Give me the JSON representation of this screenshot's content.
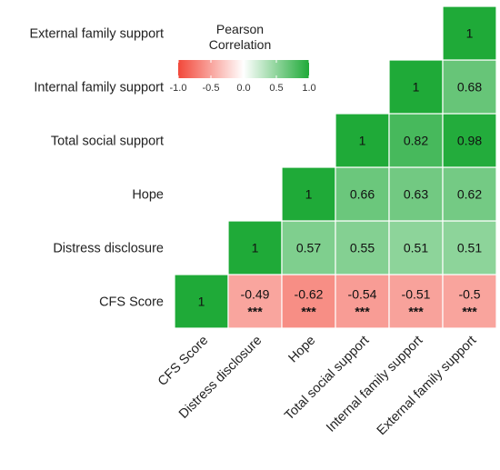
{
  "chart_data": {
    "type": "heatmap",
    "subtype": "lower-triangular correlation matrix",
    "variables": [
      "CFS Score",
      "Distress disclosure",
      "Hope",
      "Total social support",
      "Internal family support",
      "External family support"
    ],
    "cells": [
      {
        "row": "CFS Score",
        "col": "CFS Score",
        "value": 1,
        "label": "1",
        "sig": ""
      },
      {
        "row": "CFS Score",
        "col": "Distress disclosure",
        "value": -0.49,
        "label": "-0.49",
        "sig": "***"
      },
      {
        "row": "CFS Score",
        "col": "Hope",
        "value": -0.62,
        "label": "-0.62",
        "sig": "***"
      },
      {
        "row": "CFS Score",
        "col": "Total social support",
        "value": -0.54,
        "label": "-0.54",
        "sig": "***"
      },
      {
        "row": "CFS Score",
        "col": "Internal family support",
        "value": -0.51,
        "label": "-0.51",
        "sig": "***"
      },
      {
        "row": "CFS Score",
        "col": "External family support",
        "value": -0.5,
        "label": "-0.5",
        "sig": "***"
      },
      {
        "row": "Distress disclosure",
        "col": "Distress disclosure",
        "value": 1,
        "label": "1",
        "sig": ""
      },
      {
        "row": "Distress disclosure",
        "col": "Hope",
        "value": 0.57,
        "label": "0.57",
        "sig": ""
      },
      {
        "row": "Distress disclosure",
        "col": "Total social support",
        "value": 0.55,
        "label": "0.55",
        "sig": ""
      },
      {
        "row": "Distress disclosure",
        "col": "Internal family support",
        "value": 0.51,
        "label": "0.51",
        "sig": ""
      },
      {
        "row": "Distress disclosure",
        "col": "External family support",
        "value": 0.51,
        "label": "0.51",
        "sig": ""
      },
      {
        "row": "Hope",
        "col": "Hope",
        "value": 1,
        "label": "1",
        "sig": ""
      },
      {
        "row": "Hope",
        "col": "Total social support",
        "value": 0.66,
        "label": "0.66",
        "sig": ""
      },
      {
        "row": "Hope",
        "col": "Internal family support",
        "value": 0.63,
        "label": "0.63",
        "sig": ""
      },
      {
        "row": "Hope",
        "col": "External family support",
        "value": 0.62,
        "label": "0.62",
        "sig": ""
      },
      {
        "row": "Total social support",
        "col": "Total social support",
        "value": 1,
        "label": "1",
        "sig": ""
      },
      {
        "row": "Total social support",
        "col": "Internal family support",
        "value": 0.82,
        "label": "0.82",
        "sig": ""
      },
      {
        "row": "Total social support",
        "col": "External family support",
        "value": 0.98,
        "label": "0.98",
        "sig": ""
      },
      {
        "row": "Internal family support",
        "col": "Internal family support",
        "value": 1,
        "label": "1",
        "sig": ""
      },
      {
        "row": "Internal family support",
        "col": "External family support",
        "value": 0.68,
        "label": "0.68",
        "sig": ""
      },
      {
        "row": "External family support",
        "col": "External family support",
        "value": 1,
        "label": "1",
        "sig": ""
      }
    ],
    "legend": {
      "title_line1": "Pearson",
      "title_line2": "Correlation",
      "ticks": [
        "-1.0",
        "-0.5",
        "0.0",
        "0.5",
        "1.0"
      ],
      "tick_values": [
        -1.0,
        -0.5,
        0.0,
        0.5,
        1.0
      ],
      "range": [
        -1,
        1
      ],
      "position": "top-left, inside empty upper triangle"
    },
    "colors": {
      "negative": "#f2483a",
      "zero": "#ffffff",
      "positive": "#1faa38",
      "cell_border": "#ffffff"
    },
    "grid": false
  }
}
